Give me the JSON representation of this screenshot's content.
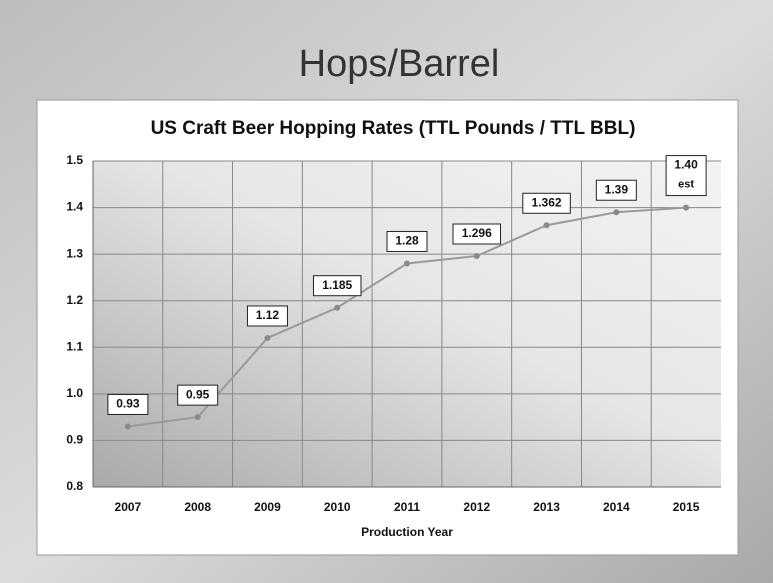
{
  "slide_title": "Hops/Barrel",
  "chart_data": {
    "type": "line",
    "title": "US Craft Beer Hopping Rates (TTL Pounds / TTL BBL)",
    "x_label": "Production Year",
    "categories": [
      "2007",
      "2008",
      "2009",
      "2010",
      "2011",
      "2012",
      "2013",
      "2014",
      "2015"
    ],
    "values": [
      0.93,
      0.95,
      1.12,
      1.185,
      1.28,
      1.296,
      1.362,
      1.39,
      1.4
    ],
    "value_labels": [
      "0.93",
      "0.95",
      "1.12",
      "1.185",
      "1.28",
      "1.296",
      "1.362",
      "1.39",
      "1.40"
    ],
    "estimate_note": "est",
    "color": "#9a9a9a",
    "ylim": [
      0.8,
      1.5
    ],
    "yticks": [
      0.8,
      0.9,
      {
        "value": 1,
        "label": "1.0"
      },
      1.1,
      1.2,
      1.3,
      1.4,
      1.5
    ],
    "grid": true
  }
}
